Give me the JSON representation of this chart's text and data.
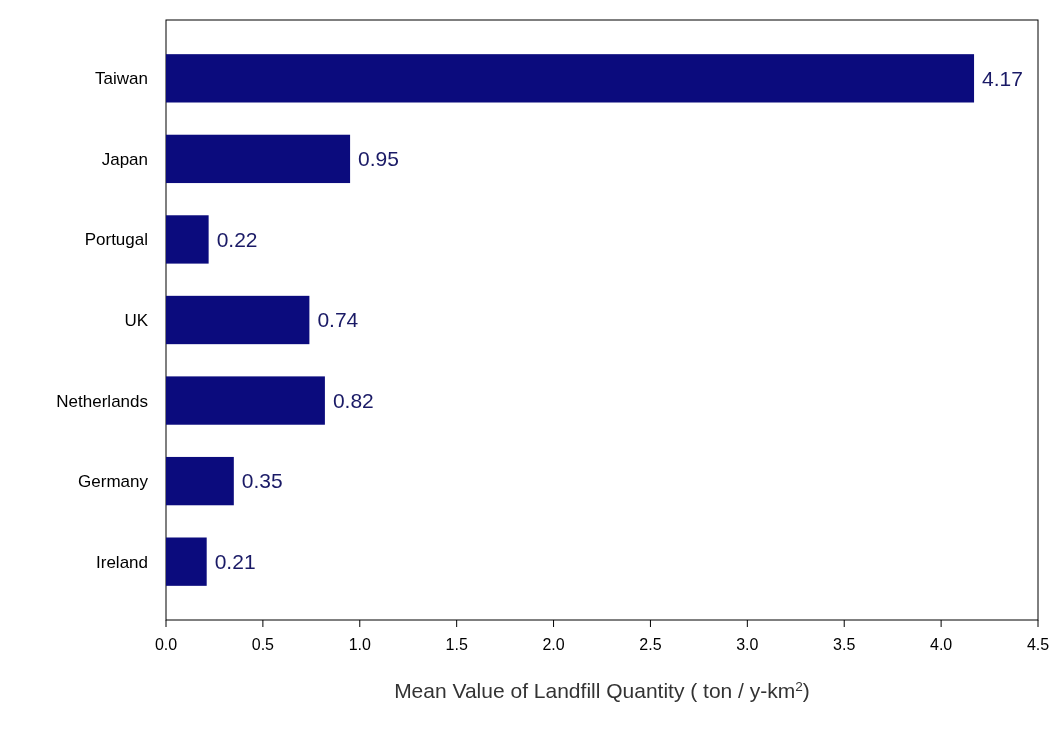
{
  "chart_data": {
    "type": "bar",
    "orientation": "horizontal",
    "categories": [
      "Taiwan",
      "Japan",
      "Portugal",
      "UK",
      "Netherlands",
      "Germany",
      "Ireland"
    ],
    "values": [
      4.17,
      0.95,
      0.22,
      0.74,
      0.82,
      0.35,
      0.21
    ],
    "color": "#0b0b7d",
    "xlabel": "Mean Value of Landfill Quantity ( ton / y-km$^{2}$)",
    "xlim": [
      0,
      4.5
    ],
    "xticks": [
      {
        "value": 0,
        "label": "0.0"
      },
      0.5,
      {
        "value": 1,
        "label": "1.0"
      },
      1.5,
      {
        "value": 2,
        "label": "2.0"
      },
      2.5,
      {
        "value": 3,
        "label": "3.0"
      },
      3.5,
      {
        "value": 4,
        "label": "4.0"
      },
      4.5
    ],
    "data_labels": true
  }
}
